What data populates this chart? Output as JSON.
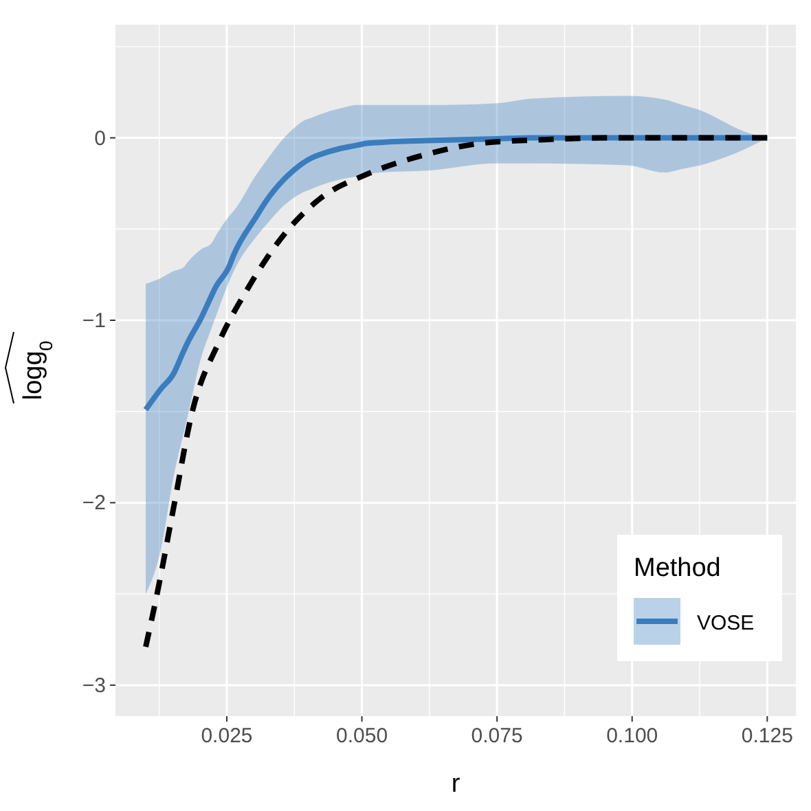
{
  "chart_data": {
    "type": "line",
    "xlabel": "r",
    "ylabel": "logg$_{0}$",
    "legend_title": "Method",
    "legend": "bottom right",
    "grid": true,
    "xlim": [
      0.0044,
      0.1303
    ],
    "ylim": [
      -3.17,
      0.62
    ],
    "xticks": [
      0.025,
      {
        "value": 0.05,
        "label": "0.050"
      },
      0.075,
      {
        "value": 0.1,
        "label": "0.100"
      },
      0.125
    ],
    "yticks": [
      {
        "value": -3,
        "label": "−3"
      },
      {
        "value": -2,
        "label": "−2"
      },
      {
        "value": -1,
        "label": "−1"
      },
      0
    ],
    "series": [
      {
        "name": "VOSE",
        "color": "#3a7dbf",
        "line_style": "solid",
        "x": [
          0.01,
          0.0127,
          0.0152,
          0.017,
          0.0178,
          0.0203,
          0.0221,
          0.0229,
          0.0254,
          0.0263,
          0.0305,
          0.0322,
          0.0356,
          0.0373,
          0.039,
          0.0407,
          0.0424,
          0.0458,
          0.0492,
          0.0509,
          0.0534,
          0.062,
          0.075,
          0.0814,
          0.0991,
          0.106,
          0.1093,
          0.1127,
          0.1178,
          0.1195,
          0.125
        ],
        "values": [
          -1.49,
          -1.38,
          -1.29,
          -1.17,
          -1.12,
          -0.985,
          -0.87,
          -0.82,
          -0.707,
          -0.64,
          -0.43,
          -0.35,
          -0.227,
          -0.18,
          -0.14,
          -0.11,
          -0.09,
          -0.06,
          -0.04,
          -0.03,
          -0.025,
          -0.015,
          -0.005,
          0,
          0,
          0,
          0,
          0,
          0,
          0,
          0
        ],
        "lower": [
          -2.5,
          -2.27,
          -1.85,
          -1.62,
          -1.52,
          -1.2,
          -1.05,
          -0.985,
          -0.79,
          -0.73,
          -0.54,
          -0.48,
          -0.37,
          -0.33,
          -0.3,
          -0.28,
          -0.26,
          -0.23,
          -0.21,
          -0.2,
          -0.19,
          -0.18,
          -0.14,
          -0.14,
          -0.15,
          -0.19,
          -0.17,
          -0.15,
          -0.1,
          -0.08,
          0
        ],
        "upper": [
          -0.8,
          -0.77,
          -0.73,
          -0.71,
          -0.68,
          -0.61,
          -0.58,
          -0.54,
          -0.43,
          -0.4,
          -0.2,
          -0.13,
          0.0,
          0.05,
          0.09,
          0.11,
          0.13,
          0.16,
          0.18,
          0.18,
          0.18,
          0.18,
          0.19,
          0.215,
          0.23,
          0.21,
          0.18,
          0.15,
          0.076,
          0.05,
          0
        ]
      },
      {
        "color": "#000000",
        "line_style": "dashed",
        "x": [
          0.01,
          0.0121,
          0.0152,
          0.0185,
          0.0237,
          0.0288,
          0.0356,
          0.0424,
          0.0509,
          0.062,
          0.072,
          0.0836,
          0.095,
          0.11,
          0.125
        ],
        "values": [
          -2.79,
          -2.5,
          -2.02,
          -1.515,
          -1.11,
          -0.83,
          -0.53,
          -0.33,
          -0.2,
          -0.09,
          -0.03,
          -0.01,
          0,
          0,
          0
        ]
      }
    ]
  }
}
